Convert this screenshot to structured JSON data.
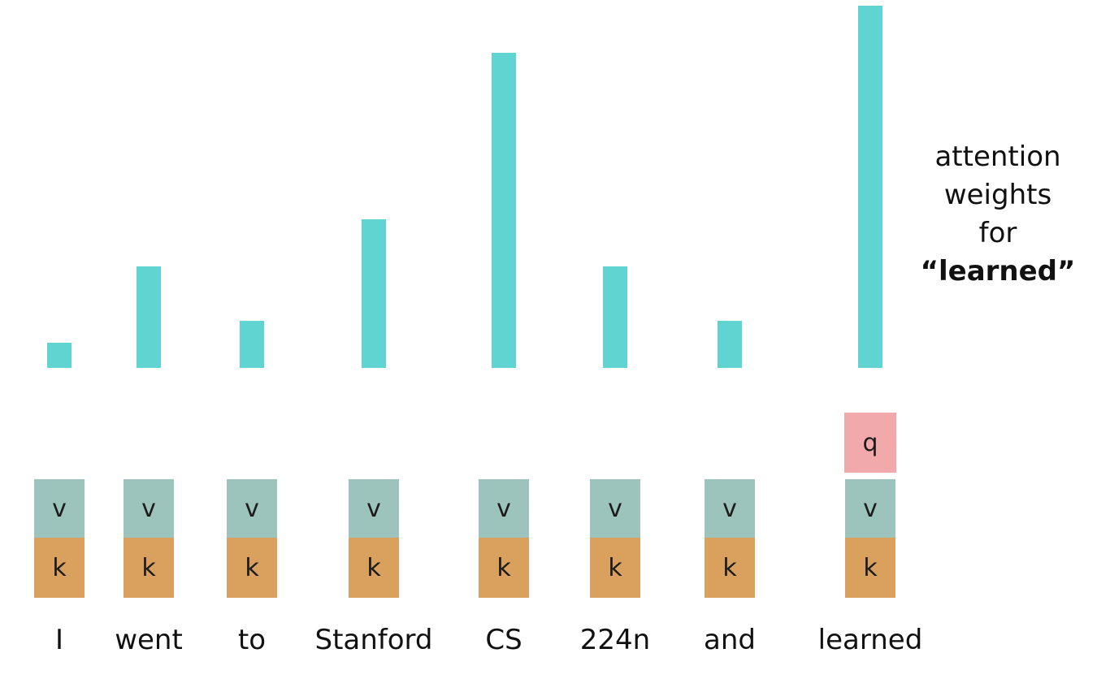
{
  "legend": {
    "line1": "attention",
    "line2": "weights",
    "line3": "for",
    "line4": "“learned”"
  },
  "labels": {
    "value": "v",
    "key": "k",
    "query": "q"
  },
  "colors": {
    "bar": "#5fd4d0",
    "value_box": "#9dc3bd",
    "key_box": "#d9a05e",
    "query_box": "#f2a9ab"
  },
  "chart_data": {
    "type": "bar",
    "categories": [
      "I",
      "went",
      "to",
      "Stanford",
      "CS",
      "224n",
      "and",
      "learned"
    ],
    "series": [
      {
        "values": [
          0.07,
          0.28,
          0.13,
          0.41,
          0.87,
          0.28,
          0.13,
          1.0
        ]
      }
    ],
    "query_token": "learned"
  }
}
